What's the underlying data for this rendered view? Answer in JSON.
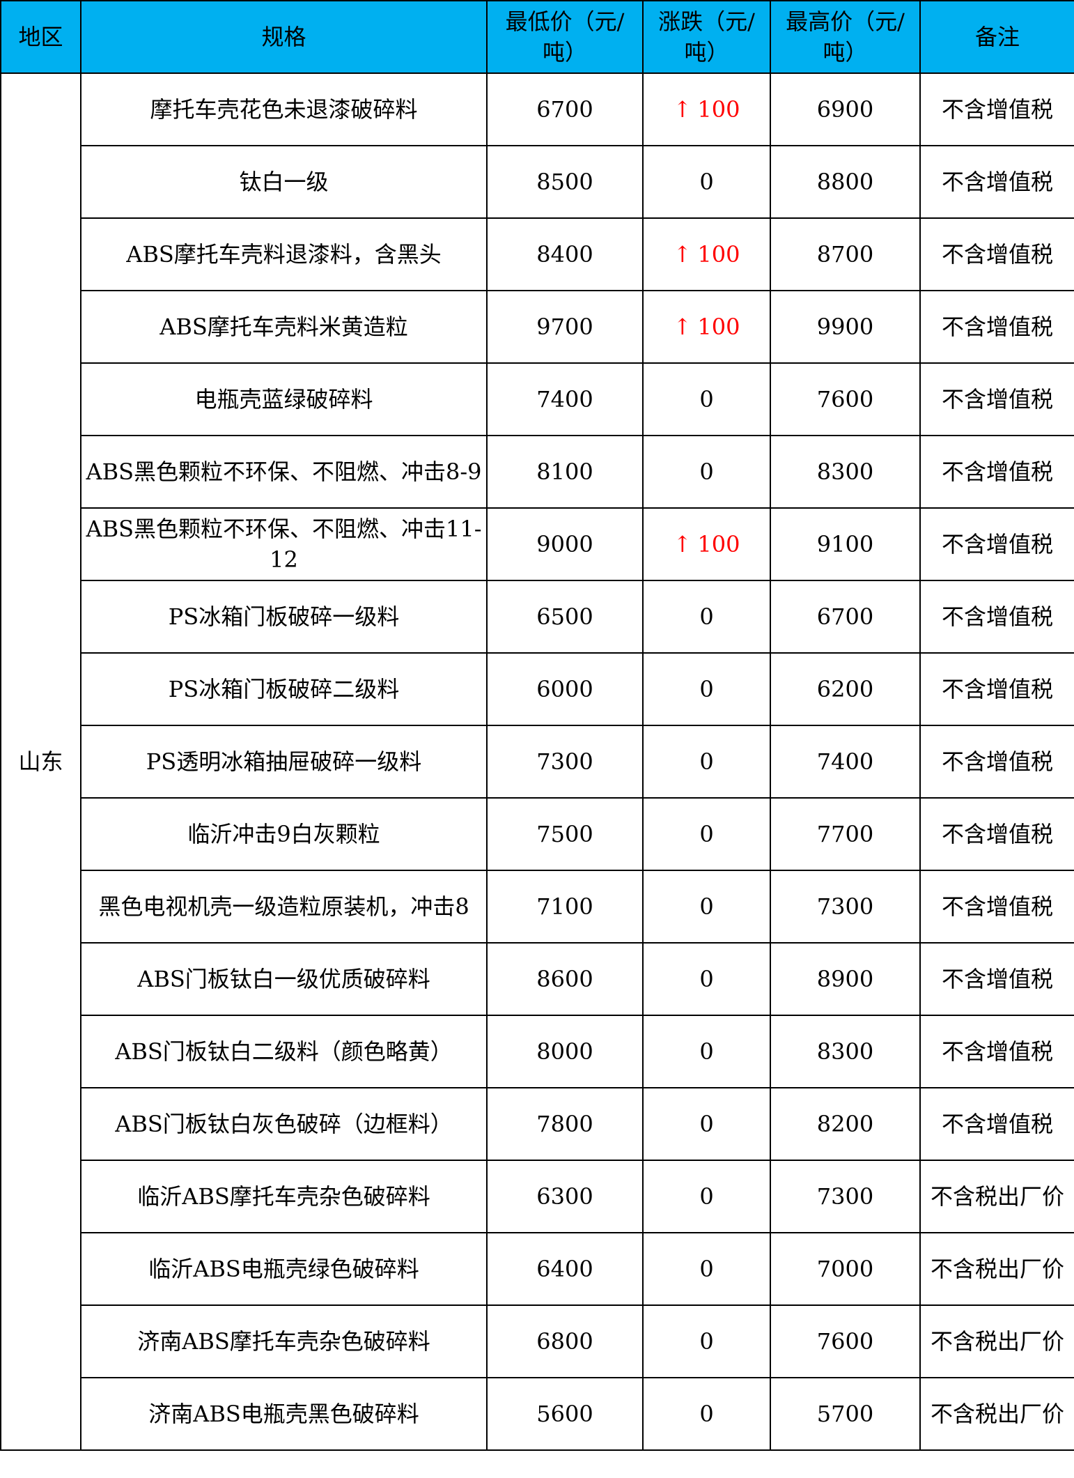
{
  "colors": {
    "header_bg": "#00B0F0",
    "rise": "#FF0000"
  },
  "headers": [
    "地区",
    "规格",
    "最低价（元/吨）",
    "涨跌（元/吨）",
    "最高价（元/吨）",
    "备注"
  ],
  "region": "山东",
  "rows": [
    {
      "spec": "摩托车壳花色未退漆破碎料",
      "low": "6700",
      "change": "100",
      "up": true,
      "high": "6900",
      "note": "不含增值税"
    },
    {
      "spec": "钛白一级",
      "low": "8500",
      "change": "0",
      "up": false,
      "high": "8800",
      "note": "不含增值税"
    },
    {
      "spec": "ABS摩托车壳料退漆料，含黑头",
      "low": "8400",
      "change": "100",
      "up": true,
      "high": "8700",
      "note": "不含增值税"
    },
    {
      "spec": "ABS摩托车壳料米黄造粒",
      "low": "9700",
      "change": "100",
      "up": true,
      "high": "9900",
      "note": "不含增值税"
    },
    {
      "spec": "电瓶壳蓝绿破碎料",
      "low": "7400",
      "change": "0",
      "up": false,
      "high": "7600",
      "note": "不含增值税"
    },
    {
      "spec": "ABS黑色颗粒不环保、不阻燃、冲击8-9",
      "low": "8100",
      "change": "0",
      "up": false,
      "high": "8300",
      "note": "不含增值税"
    },
    {
      "spec": "ABS黑色颗粒不环保、不阻燃、冲击11-12",
      "low": "9000",
      "change": "100",
      "up": true,
      "high": "9100",
      "note": "不含增值税"
    },
    {
      "spec": "PS冰箱门板破碎一级料",
      "low": "6500",
      "change": "0",
      "up": false,
      "high": "6700",
      "note": "不含增值税"
    },
    {
      "spec": "PS冰箱门板破碎二级料",
      "low": "6000",
      "change": "0",
      "up": false,
      "high": "6200",
      "note": "不含增值税"
    },
    {
      "spec": "PS透明冰箱抽屉破碎一级料",
      "low": "7300",
      "change": "0",
      "up": false,
      "high": "7400",
      "note": "不含增值税"
    },
    {
      "spec": "临沂冲击9白灰颗粒",
      "low": "7500",
      "change": "0",
      "up": false,
      "high": "7700",
      "note": "不含增值税"
    },
    {
      "spec": "黑色电视机壳一级造粒原装机，冲击8",
      "low": "7100",
      "change": "0",
      "up": false,
      "high": "7300",
      "note": "不含增值税"
    },
    {
      "spec": "ABS门板钛白一级优质破碎料",
      "low": "8600",
      "change": "0",
      "up": false,
      "high": "8900",
      "note": "不含增值税"
    },
    {
      "spec": "ABS门板钛白二级料（颜色略黄）",
      "low": "8000",
      "change": "0",
      "up": false,
      "high": "8300",
      "note": "不含增值税"
    },
    {
      "spec": "ABS门板钛白灰色破碎（边框料）",
      "low": "7800",
      "change": "0",
      "up": false,
      "high": "8200",
      "note": "不含增值税"
    },
    {
      "spec": "临沂ABS摩托车壳杂色破碎料",
      "low": "6300",
      "change": "0",
      "up": false,
      "high": "7300",
      "note": "不含税出厂价"
    },
    {
      "spec": "临沂ABS电瓶壳绿色破碎料",
      "low": "6400",
      "change": "0",
      "up": false,
      "high": "7000",
      "note": "不含税出厂价"
    },
    {
      "spec": "济南ABS摩托车壳杂色破碎料",
      "low": "6800",
      "change": "0",
      "up": false,
      "high": "7600",
      "note": "不含税出厂价"
    },
    {
      "spec": "济南ABS电瓶壳黑色破碎料",
      "low": "5600",
      "change": "0",
      "up": false,
      "high": "5700",
      "note": "不含税出厂价"
    }
  ]
}
